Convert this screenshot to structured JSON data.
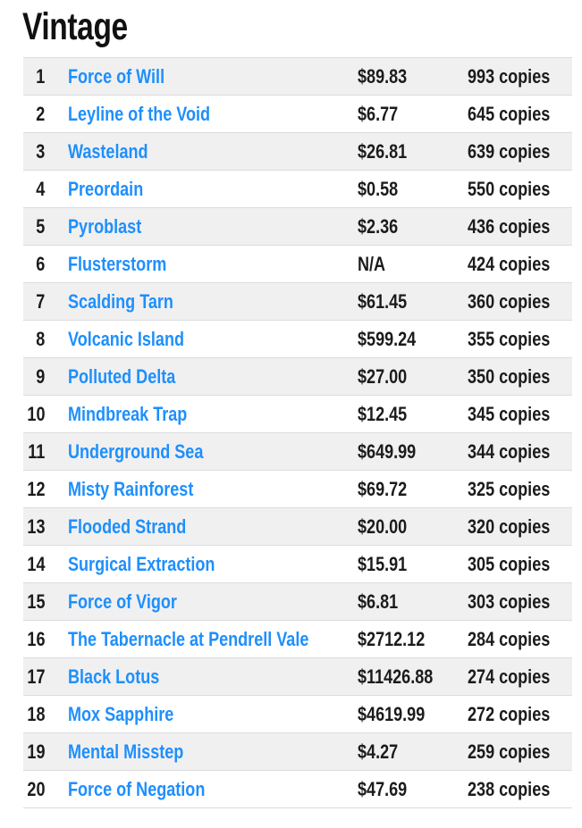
{
  "page": {
    "title": "Vintage",
    "colors": {
      "accent": "#1e8ffc",
      "row_stripe": "#f0f0f1",
      "row_border": "#dcdcdf",
      "text": "#1b1b1b",
      "title": "#111111"
    }
  },
  "table": {
    "columns": [
      "rank",
      "card",
      "price",
      "copies"
    ],
    "rows": [
      {
        "rank": "1",
        "card": "Force of Will",
        "price": "$89.83",
        "copies": "993 copies"
      },
      {
        "rank": "2",
        "card": "Leyline of the Void",
        "price": "$6.77",
        "copies": "645 copies"
      },
      {
        "rank": "3",
        "card": "Wasteland",
        "price": "$26.81",
        "copies": "639 copies"
      },
      {
        "rank": "4",
        "card": "Preordain",
        "price": "$0.58",
        "copies": "550 copies"
      },
      {
        "rank": "5",
        "card": "Pyroblast",
        "price": "$2.36",
        "copies": "436 copies"
      },
      {
        "rank": "6",
        "card": "Flusterstorm",
        "price": "N/A",
        "copies": "424 copies"
      },
      {
        "rank": "7",
        "card": "Scalding Tarn",
        "price": "$61.45",
        "copies": "360 copies"
      },
      {
        "rank": "8",
        "card": "Volcanic Island",
        "price": "$599.24",
        "copies": "355 copies"
      },
      {
        "rank": "9",
        "card": "Polluted Delta",
        "price": "$27.00",
        "copies": "350 copies"
      },
      {
        "rank": "10",
        "card": "Mindbreak Trap",
        "price": "$12.45",
        "copies": "345 copies"
      },
      {
        "rank": "11",
        "card": "Underground Sea",
        "price": "$649.99",
        "copies": "344 copies"
      },
      {
        "rank": "12",
        "card": "Misty Rainforest",
        "price": "$69.72",
        "copies": "325 copies"
      },
      {
        "rank": "13",
        "card": "Flooded Strand",
        "price": "$20.00",
        "copies": "320 copies"
      },
      {
        "rank": "14",
        "card": "Surgical Extraction",
        "price": "$15.91",
        "copies": "305 copies"
      },
      {
        "rank": "15",
        "card": "Force of Vigor",
        "price": "$6.81",
        "copies": "303 copies"
      },
      {
        "rank": "16",
        "card": "The Tabernacle at Pendrell Vale",
        "price": "$2712.12",
        "copies": "284 copies"
      },
      {
        "rank": "17",
        "card": "Black Lotus",
        "price": "$11426.88",
        "copies": "274 copies"
      },
      {
        "rank": "18",
        "card": "Mox Sapphire",
        "price": "$4619.99",
        "copies": "272 copies"
      },
      {
        "rank": "19",
        "card": "Mental Misstep",
        "price": "$4.27",
        "copies": "259 copies"
      },
      {
        "rank": "20",
        "card": "Force of Negation",
        "price": "$47.69",
        "copies": "238 copies"
      }
    ]
  }
}
